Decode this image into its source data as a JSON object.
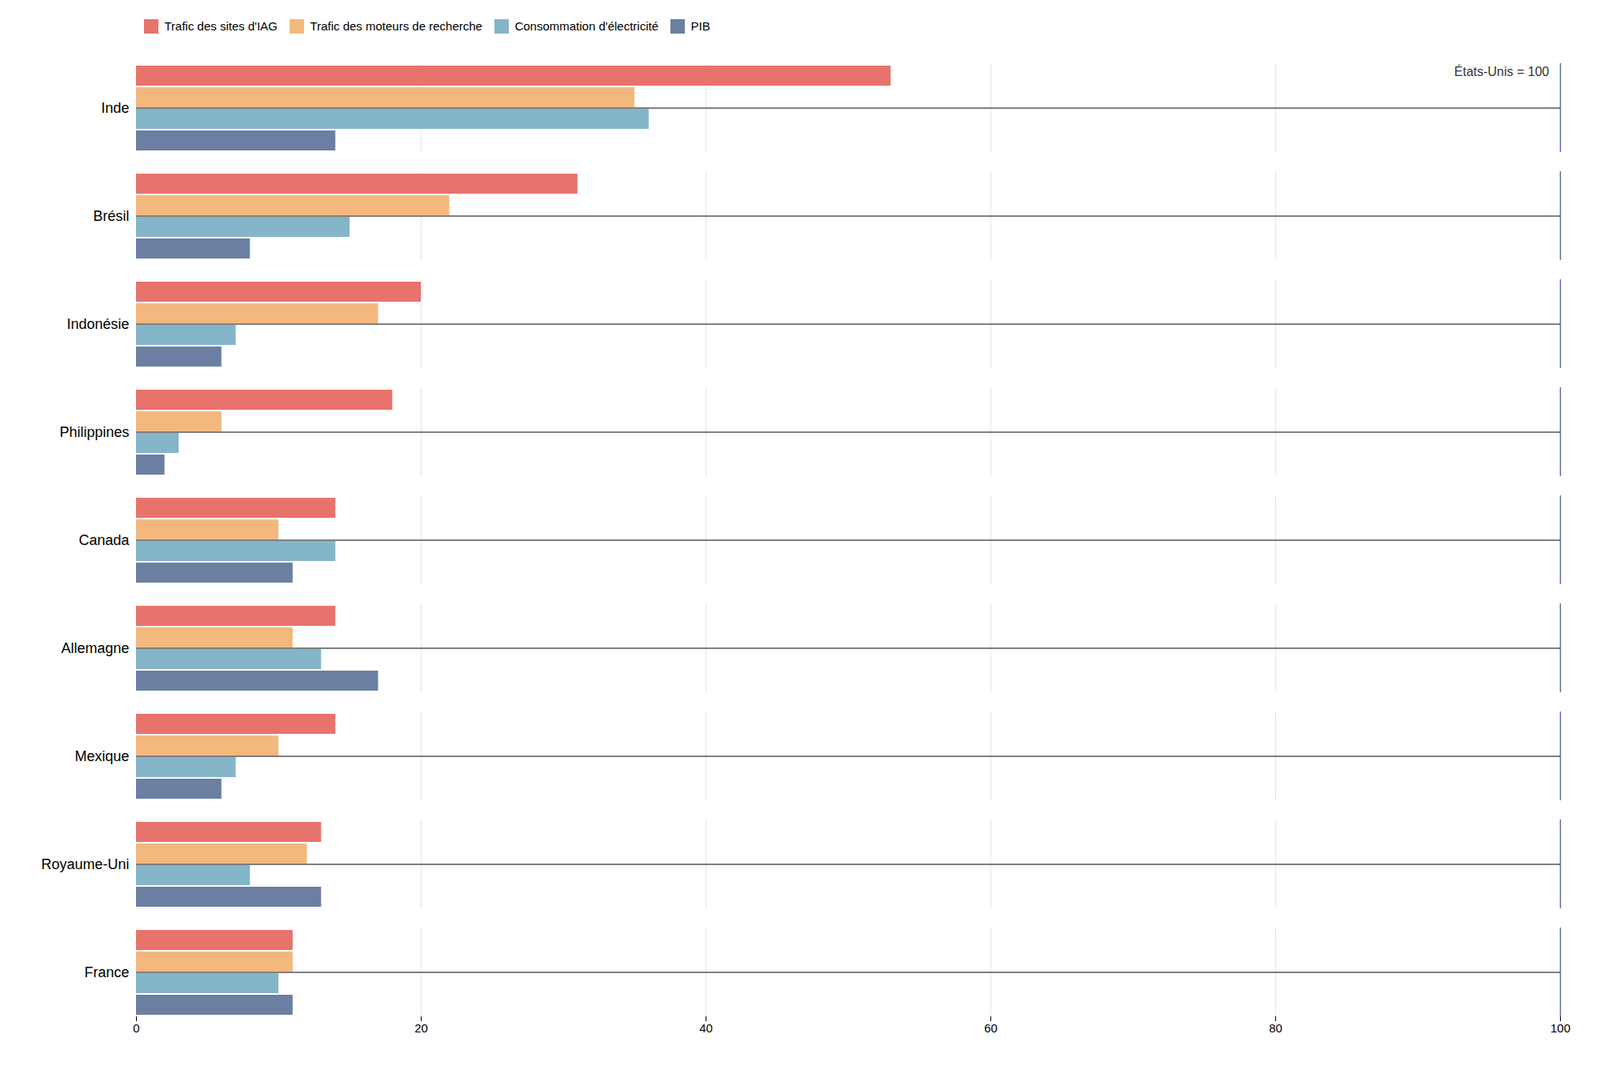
{
  "chart_data": {
    "type": "bar",
    "orientation": "horizontal",
    "categories": [
      "Inde",
      "Brésil",
      "Indonésie",
      "Philippines",
      "Canada",
      "Allemagne",
      "Mexique",
      "Royaume-Uni",
      "France"
    ],
    "series": [
      {
        "name": "Trafic des sites d'IAG",
        "color": "#E8736C",
        "values": [
          53,
          31,
          20,
          18,
          14,
          14,
          14,
          13,
          11
        ]
      },
      {
        "name": "Trafic des moteurs de recherche",
        "color": "#F2B87E",
        "values": [
          35,
          22,
          17,
          6,
          10,
          11,
          10,
          12,
          11
        ]
      },
      {
        "name": "Consommation d'électricité",
        "color": "#85B5C9",
        "values": [
          36,
          15,
          7,
          3,
          14,
          13,
          7,
          8,
          10
        ]
      },
      {
        "name": "PIB",
        "color": "#6B7FA3",
        "values": [
          14,
          8,
          6,
          2,
          11,
          17,
          6,
          13,
          11
        ]
      }
    ],
    "xlim": [
      0,
      100
    ],
    "xticks": [
      0,
      20,
      40,
      60,
      80,
      100
    ],
    "grid": true,
    "legend": "top",
    "annotations": [
      "États-Unis = 100"
    ]
  }
}
